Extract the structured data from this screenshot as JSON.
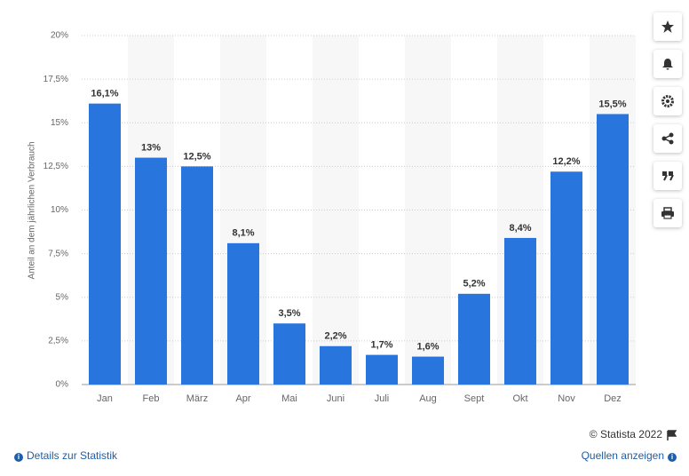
{
  "chart_data": {
    "type": "bar",
    "ylabel": "Anteil an dem jährlichen Verbrauch",
    "categories": [
      "Jan",
      "Feb",
      "März",
      "Apr",
      "Mai",
      "Juni",
      "Juli",
      "Aug",
      "Sept",
      "Okt",
      "Nov",
      "Dez"
    ],
    "values": [
      16.1,
      13,
      12.5,
      8.1,
      3.5,
      2.2,
      1.7,
      1.6,
      5.2,
      8.4,
      12.2,
      15.5
    ],
    "value_labels": [
      "16,1%",
      "13%",
      "12,5%",
      "8,1%",
      "3,5%",
      "2,2%",
      "1,7%",
      "1,6%",
      "5,2%",
      "8,4%",
      "12,2%",
      "15,5%"
    ],
    "color": "#2876dd",
    "ylim": [
      0,
      20
    ],
    "yticks": [
      {
        "value": 0,
        "label": "0%"
      },
      {
        "value": 2.5,
        "label": "2,5%"
      },
      {
        "value": 5,
        "label": "5%"
      },
      {
        "value": 7.5,
        "label": "7,5%"
      },
      {
        "value": 10,
        "label": "10%"
      },
      {
        "value": 12.5,
        "label": "12,5%"
      },
      {
        "value": 15,
        "label": "15%"
      },
      {
        "value": 17.5,
        "label": "17,5%"
      },
      {
        "value": 20,
        "label": "20%"
      }
    ],
    "grid": true
  },
  "footer": {
    "copyright": "© Statista 2022",
    "details": "Details zur Statistik",
    "sources": "Quellen anzeigen"
  }
}
